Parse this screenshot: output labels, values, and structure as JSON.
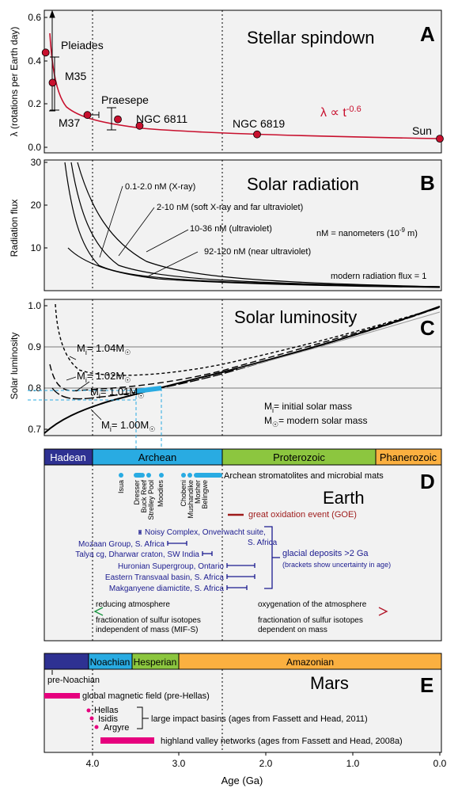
{
  "panel_A": {
    "letter": "A",
    "title": "Stellar spindown",
    "ylabel": "λ (rotations per Earth day)",
    "yticks": [
      "0.6",
      "0.4",
      "0.2",
      "0.0"
    ],
    "formula": "λ ∝ t",
    "formula_exp": "-0.6",
    "clusters": [
      "Pleiades",
      "M35",
      "M37",
      "Praesepe",
      "NGC 6811",
      "NGC 6819",
      "Sun"
    ]
  },
  "panel_B": {
    "letter": "B",
    "title": "Solar radiation",
    "ylabel": "Radiation flux",
    "yticks": [
      "30",
      "20",
      "10"
    ],
    "labels": [
      "0.1-2.0 nM (X-ray)",
      "2-10 nM (soft X-ray and far ultraviolet)",
      "10-36 nM (ultraviolet)",
      "92-120 nM (near ultraviolet)",
      "modern radiation flux = 1"
    ],
    "nm_note": "nM  = nanometers (10",
    "nm_exp": "-9",
    "nm_unit": " m)"
  },
  "panel_C": {
    "letter": "C",
    "title": "Solar luminosity",
    "ylabel": "Solar luminosity",
    "yticks": [
      "1.0",
      "0.9",
      "0.8",
      "0.7"
    ],
    "mass_values": [
      "= 1.04M",
      "= 1.02M",
      "= 1.01M",
      "= 1.00M"
    ],
    "legend": [
      "= initial solar mass",
      "= modern solar mass"
    ]
  },
  "panel_D": {
    "letter": "D",
    "title": "Earth",
    "eons": [
      "Hadean",
      "Archean",
      "Proterozoic",
      "Phanerozoic"
    ],
    "stromatolites": "Archean stromatolites and microbial mats",
    "sites": [
      "Isua",
      "Dresser",
      "Buck Reef",
      "Strelley Pool",
      "Moodies",
      "Chobeni",
      "Mushandike",
      "Mosher",
      "Belingwe"
    ],
    "goe": "great oxidation event (GOE)",
    "glacial": [
      "Noisy Complex, Onverwacht suite,",
      "S. Africa",
      "Mozaan Group, S. Africa",
      "Talya cg, Dharwar craton, SW India",
      "Huronian Supergroup, Ontario",
      "Eastern Transvaal basin, S. Africa",
      "Makganyene diamictite, S. Africa"
    ],
    "glacial_title": "glacial deposits >2 Ga",
    "glacial_note": "(brackets show uncertainty in age)",
    "reducing": "reducing atmosphere",
    "oxygenation": "oxygenation of the atmosphere",
    "mif_s": [
      "fractionation of sulfur isotopes",
      "independent of mass (MIF-S)"
    ],
    "md": [
      "fractionation of sulfur isotopes",
      "dependent on mass"
    ]
  },
  "panel_E": {
    "letter": "E",
    "title": "Mars",
    "eras": [
      "Noachian",
      "Hesperian",
      "Amazonian"
    ],
    "pre_noachian": "pre-Noachian",
    "magnetic": "global magnetic field (pre-Hellas)",
    "basins": [
      "Hellas",
      "Isidis",
      "Argyre"
    ],
    "impact": "large impact basins (ages from Fassett and Head, 2011)",
    "valley": "highland valley networks (ages from Fassett and Head, 2008a)"
  },
  "xaxis": {
    "label": "Age (Ga)",
    "ticks": [
      "4.0",
      "3.0",
      "2.0",
      "1.0",
      "0.0"
    ]
  },
  "colors": {
    "red": "#c8102e",
    "blue": "#1b1b8f",
    "cyan": "#29abe2",
    "green": "#8cc63f",
    "orange": "#fbb040",
    "navy": "#2e3192",
    "magenta": "#e6007e",
    "panel_bg": "#f2f2f2",
    "darkred": "#9e1b1b"
  },
  "chart_data": [
    {
      "panel": "A",
      "type": "scatter",
      "title": "Stellar spindown",
      "ylabel": "λ (rotations per Earth day)",
      "xlabel": "Age (Ga)",
      "ylim": [
        0,
        0.6
      ],
      "xlim": [
        4.6,
        0
      ],
      "points": [
        {
          "name": "Pleiades",
          "age": 4.53,
          "lambda": 0.44
        },
        {
          "name": "M35",
          "age": 4.45,
          "lambda": 0.3
        },
        {
          "name": "M37",
          "age": 4.05,
          "lambda": 0.15
        },
        {
          "name": "Praesepe",
          "age": 3.7,
          "lambda": 0.13
        },
        {
          "name": "NGC 6811",
          "age": 3.45,
          "lambda": 0.1
        },
        {
          "name": "NGC 6819",
          "age": 2.1,
          "lambda": 0.06
        },
        {
          "name": "Sun",
          "age": 0.0,
          "lambda": 0.04
        }
      ],
      "fit": "λ ∝ t^-0.6"
    },
    {
      "panel": "B",
      "type": "line",
      "title": "Solar radiation",
      "ylabel": "Radiation flux",
      "ylim": [
        0,
        30
      ],
      "series": [
        {
          "name": "0.1-2.0 nM (X-ray)",
          "x": [
            4.25,
            4.1,
            4.0,
            3.8,
            3.5,
            3.0,
            2.5,
            2.0,
            1.0,
            0.0
          ],
          "y": [
            30,
            21,
            17,
            12,
            8,
            4.8,
            3.3,
            2.4,
            1.5,
            1
          ]
        },
        {
          "name": "2-10 nM (soft X-ray and far ultraviolet)",
          "x": [
            4.4,
            4.2,
            4.0,
            3.7,
            3.4,
            3.0,
            2.5,
            2.0,
            1.0,
            0.0
          ],
          "y": [
            30,
            22,
            16,
            11,
            7.5,
            5.2,
            3.6,
            2.7,
            1.6,
            1
          ]
        },
        {
          "name": "10-36 nM (ultraviolet)",
          "x": [
            4.3,
            4.1,
            3.9,
            3.6,
            3.3,
            3.0,
            2.5,
            2.0,
            1.0,
            0.0
          ],
          "y": [
            30,
            24,
            18.5,
            13,
            9.5,
            7.3,
            5.1,
            3.7,
            2.0,
            1
          ]
        },
        {
          "name": "92-120 nM (near ultraviolet)",
          "x": [
            4.5,
            4.3,
            4.0,
            3.5,
            3.0,
            2.5,
            2.0,
            1.0,
            0.0
          ],
          "y": [
            10.5,
            8,
            6,
            4.3,
            3.2,
            2.5,
            2.0,
            1.4,
            1
          ]
        }
      ]
    },
    {
      "panel": "C",
      "type": "line",
      "title": "Solar luminosity",
      "ylabel": "Solar luminosity",
      "ylim": [
        0.68,
        1.02
      ],
      "series": [
        {
          "name": "Mi = 1.04",
          "x": [
            4.5,
            4.4,
            4.2,
            4.0,
            3.5,
            3.0,
            2.5,
            2.0,
            1.0,
            0.0
          ],
          "y": [
            0.98,
            0.92,
            0.875,
            0.855,
            0.845,
            0.852,
            0.868,
            0.888,
            0.935,
            0.99
          ]
        },
        {
          "name": "Mi = 1.02",
          "x": [
            4.48,
            4.35,
            4.2,
            4.0,
            3.5,
            3.0,
            2.5,
            2.0,
            1.0,
            0.0
          ],
          "y": [
            0.84,
            0.795,
            0.785,
            0.782,
            0.792,
            0.812,
            0.84,
            0.87,
            0.93,
            0.99
          ]
        },
        {
          "name": "Mi = 1.01",
          "x": [
            4.45,
            4.3,
            4.1,
            3.9,
            3.5,
            3.0,
            2.5,
            2.0,
            1.0,
            0.0
          ],
          "y": [
            0.8,
            0.772,
            0.77,
            0.775,
            0.787,
            0.808,
            0.837,
            0.868,
            0.93,
            0.99
          ]
        },
        {
          "name": "Mi = 1.00",
          "x": [
            4.55,
            4.4,
            4.2,
            4.0,
            3.5,
            3.0,
            2.5,
            2.0,
            1.0,
            0.0
          ],
          "y": [
            0.7,
            0.73,
            0.745,
            0.757,
            0.78,
            0.805,
            0.835,
            0.865,
            0.93,
            0.99
          ]
        }
      ]
    }
  ]
}
